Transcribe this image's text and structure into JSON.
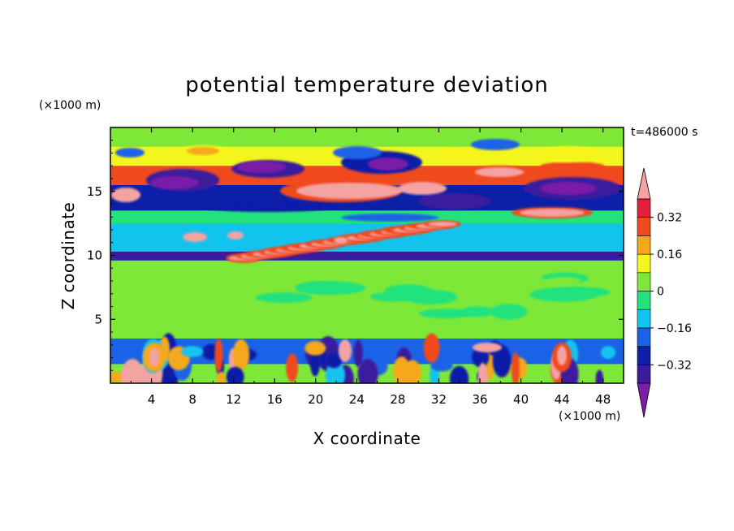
{
  "chart_data": {
    "type": "heatmap",
    "title": "potential temperature deviation",
    "xlabel": "X coordinate",
    "ylabel": "Z coordinate",
    "x_unit": "(×1000 m)",
    "y_unit": "(×1000 m)",
    "time_label": "t=486000 s",
    "xlim": [
      0,
      50
    ],
    "ylim": [
      0,
      20
    ],
    "x_ticks": [
      4,
      8,
      12,
      16,
      20,
      24,
      28,
      32,
      36,
      40,
      44,
      48
    ],
    "y_ticks": [
      5,
      10,
      15
    ],
    "colorbar": {
      "levels": [
        -0.4,
        -0.32,
        -0.24,
        -0.16,
        -0.08,
        0,
        0.08,
        0.16,
        0.24,
        0.32,
        0.4
      ],
      "labeled_levels": [
        "0.32",
        "0.16",
        "0",
        "−0.16",
        "−0.32"
      ],
      "labeled_values": [
        0.32,
        0.16,
        0,
        -0.16,
        -0.32
      ],
      "colors": [
        "#7a1fa8",
        "#3a1a9e",
        "#0b1fa8",
        "#1a63e6",
        "#12c3ee",
        "#23e27d",
        "#7ee838",
        "#f5f51e",
        "#f5a81e",
        "#f04a1e",
        "#e51e3c",
        "#f4a3a3"
      ],
      "extend": "both"
    },
    "bands": [
      {
        "z": [
          0,
          1.5
        ],
        "value": 0.02
      },
      {
        "z": [
          1.5,
          3.5
        ],
        "value": -0.18
      },
      {
        "z": [
          3.5,
          6
        ],
        "value": 0.0
      },
      {
        "z": [
          6,
          9.6
        ],
        "value": 0.06
      },
      {
        "z": [
          9.6,
          10.3
        ],
        "value": -0.35
      },
      {
        "z": [
          10.3,
          12.5
        ],
        "value": -0.1
      },
      {
        "z": [
          12.5,
          13.5
        ],
        "value": -0.05
      },
      {
        "z": [
          13.5,
          15.5
        ],
        "value": -0.3
      },
      {
        "z": [
          15.5,
          17
        ],
        "value": 0.3
      },
      {
        "z": [
          17,
          18.5
        ],
        "value": 0.12
      },
      {
        "z": [
          18.5,
          20
        ],
        "value": 0.04
      }
    ]
  }
}
